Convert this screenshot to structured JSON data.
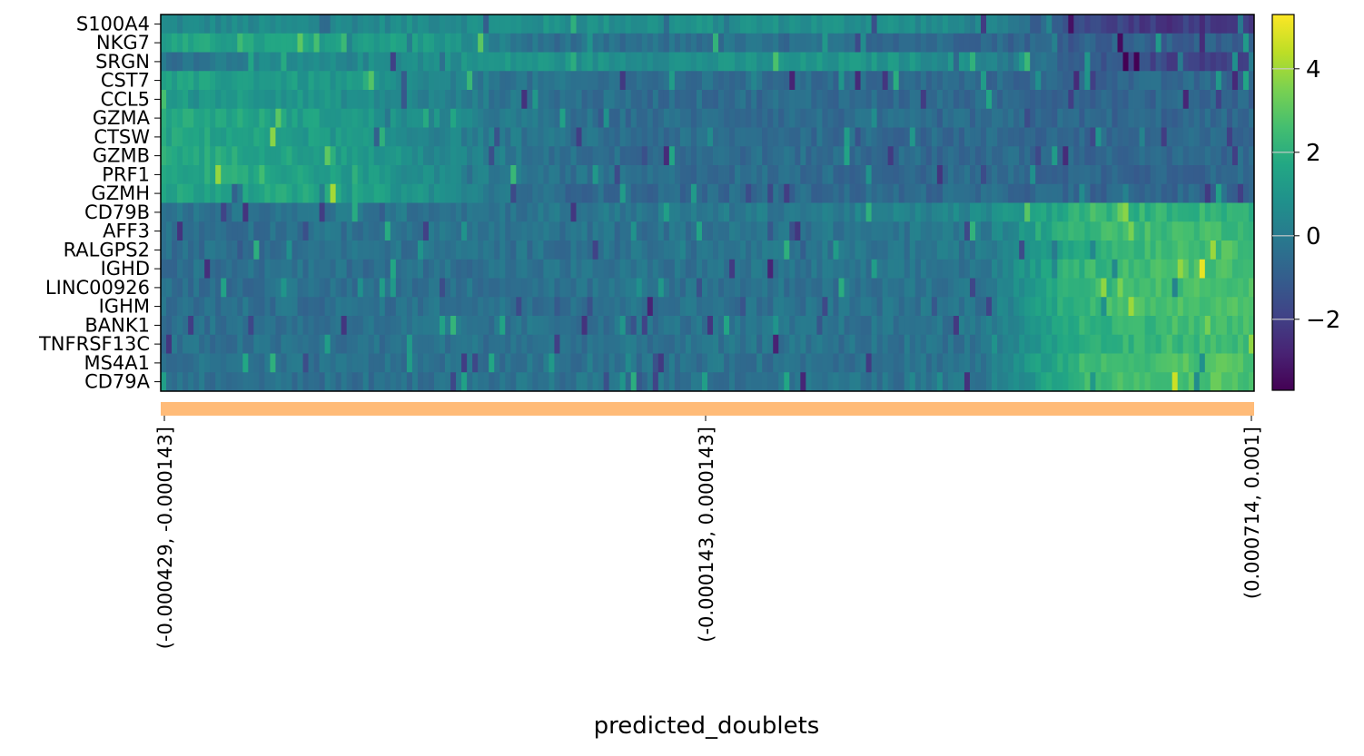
{
  "chart_data": {
    "type": "heatmap",
    "title": "",
    "xlabel": "predicted_doublets",
    "ylabel": "",
    "genes": [
      "S100A4",
      "NKG7",
      "SRGN",
      "CST7",
      "CCL5",
      "GZMA",
      "CTSW",
      "GZMB",
      "PRF1",
      "GZMH",
      "CD79B",
      "AFF3",
      "RALGPS2",
      "IGHD",
      "LINC00926",
      "IGHM",
      "BANK1",
      "TNFRSF13C",
      "MS4A1",
      "CD79A"
    ],
    "group_labels": [
      "(-0.000429, -0.000143]",
      "(-0.000143, 0.000143]",
      "(0.000714, 0.001]"
    ],
    "group_color": "#ffbb78",
    "colormap": "viridis",
    "color_range": [
      -3.7,
      5.3
    ],
    "colorbar_ticks": [
      4,
      2,
      0,
      -2
    ],
    "colorbar_tick_labels": [
      "4",
      "2",
      "0",
      "−2"
    ],
    "approx_mean_expression_by_cell_segment": [
      [
        0.5,
        0.5,
        0.5,
        0.7,
        0.8,
        0.8,
        0.8,
        0.8,
        0.8,
        0.3,
        -1.5,
        -2.2
      ],
      [
        1.5,
        1.5,
        1.5,
        1.2,
        -0.3,
        -0.5,
        -0.3,
        -0.5,
        -0.5,
        -0.6,
        -0.8,
        -1.0
      ],
      [
        -0.3,
        0.3,
        0.5,
        0.8,
        1.0,
        0.8,
        0.8,
        0.9,
        1.0,
        0.5,
        -1.0,
        -1.8
      ],
      [
        1.4,
        1.3,
        1.0,
        0.3,
        -0.3,
        -0.5,
        -0.5,
        -0.5,
        -0.6,
        -0.6,
        -0.7,
        -0.7
      ],
      [
        1.2,
        1.2,
        0.8,
        0.2,
        -0.3,
        -0.5,
        -0.5,
        -0.5,
        -0.6,
        -0.6,
        -0.7,
        -0.7
      ],
      [
        1.8,
        1.6,
        1.2,
        0.5,
        -0.2,
        -0.5,
        -0.5,
        -0.5,
        -0.6,
        -0.6,
        -0.7,
        -0.7
      ],
      [
        1.6,
        1.5,
        1.1,
        0.4,
        -0.2,
        -0.5,
        -0.5,
        -0.5,
        -0.6,
        -0.6,
        -0.7,
        -0.7
      ],
      [
        1.8,
        1.7,
        1.3,
        0.5,
        -0.2,
        -0.5,
        -0.5,
        -0.5,
        -0.6,
        -0.6,
        -0.7,
        -0.7
      ],
      [
        1.8,
        1.7,
        1.3,
        0.5,
        -0.2,
        -0.5,
        -0.5,
        -0.5,
        -0.6,
        -0.6,
        -0.7,
        -0.7
      ],
      [
        1.6,
        1.6,
        1.5,
        0.8,
        -0.5,
        -0.6,
        -0.6,
        -0.6,
        -0.6,
        -0.6,
        -0.7,
        -0.7
      ],
      [
        -0.3,
        -0.3,
        -0.2,
        -0.2,
        -0.2,
        -0.1,
        -0.1,
        0.0,
        0.2,
        0.5,
        2.0,
        2.2
      ],
      [
        -0.4,
        -0.4,
        -0.3,
        -0.3,
        -0.3,
        -0.3,
        -0.3,
        -0.2,
        -0.2,
        0.0,
        2.3,
        2.5
      ],
      [
        -0.4,
        -0.4,
        -0.3,
        -0.3,
        -0.3,
        -0.3,
        -0.3,
        -0.2,
        -0.2,
        -0.1,
        2.0,
        2.6
      ],
      [
        -0.4,
        -0.4,
        -0.4,
        -0.3,
        -0.3,
        -0.3,
        -0.3,
        -0.3,
        -0.3,
        -0.2,
        2.2,
        2.7
      ],
      [
        -0.4,
        -0.4,
        -0.4,
        -0.3,
        -0.3,
        -0.3,
        -0.3,
        -0.3,
        -0.3,
        -0.2,
        2.2,
        2.6
      ],
      [
        -0.4,
        -0.4,
        -0.4,
        -0.3,
        -0.3,
        -0.3,
        -0.3,
        -0.3,
        -0.3,
        -0.2,
        2.3,
        2.8
      ],
      [
        -0.4,
        -0.4,
        -0.4,
        -0.3,
        -0.3,
        -0.3,
        -0.3,
        -0.3,
        -0.3,
        -0.2,
        2.0,
        2.5
      ],
      [
        -0.4,
        -0.4,
        -0.4,
        -0.3,
        -0.3,
        -0.3,
        -0.3,
        -0.3,
        -0.3,
        -0.2,
        1.8,
        2.4
      ],
      [
        -0.4,
        -0.4,
        -0.4,
        -0.3,
        -0.3,
        -0.3,
        -0.3,
        -0.3,
        -0.3,
        -0.2,
        2.2,
        2.8
      ],
      [
        -0.4,
        -0.4,
        -0.4,
        -0.3,
        -0.3,
        -0.3,
        -0.3,
        -0.3,
        -0.3,
        -0.2,
        2.3,
        2.8
      ]
    ]
  }
}
